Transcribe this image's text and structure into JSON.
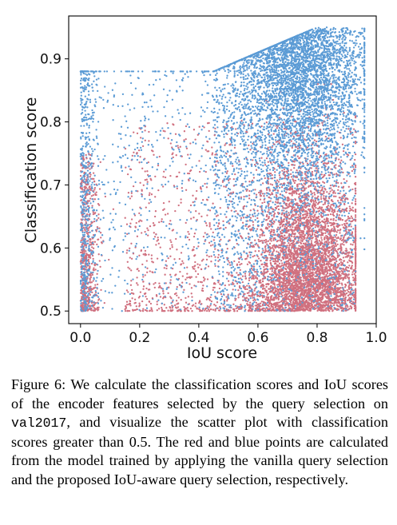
{
  "chart_data": {
    "type": "scatter",
    "title": "",
    "xlabel": "IoU score",
    "ylabel": "Classification score",
    "xlim": [
      -0.04,
      1.0
    ],
    "ylim": [
      0.48,
      0.968
    ],
    "xticks": [
      "0.0",
      "0.2",
      "0.4",
      "0.6",
      "0.8",
      "1.0"
    ],
    "xtick_values": [
      0.0,
      0.2,
      0.4,
      0.6,
      0.8,
      1.0
    ],
    "yticks": [
      "0.5",
      "0.6",
      "0.7",
      "0.8",
      "0.9"
    ],
    "ytick_values": [
      0.5,
      0.6,
      0.7,
      0.8,
      0.9
    ],
    "grid": false,
    "legend": "none",
    "series": [
      {
        "color": "#d0707f",
        "approx_points": 6000,
        "description_of_distribution": {
          "cluster_center": [
            0.77,
            0.56
          ],
          "cluster_spread": [
            0.09,
            0.09
          ],
          "x_range": [
            0.0,
            0.93
          ],
          "y_range": [
            0.5,
            0.86
          ]
        }
      },
      {
        "color": "#5b9bd5",
        "approx_points": 7000,
        "description_of_distribution": {
          "cluster_center": [
            0.74,
            0.86
          ],
          "cluster_spread": [
            0.11,
            0.08
          ],
          "x_range": [
            0.0,
            0.96
          ],
          "y_range": [
            0.5,
            0.96
          ]
        }
      }
    ]
  },
  "caption": {
    "label": "Figure 6:",
    "part1": " We calculate the classification scores and IoU scores of the encoder features selected by the query selection on ",
    "code": "val2017",
    "part2": ", and visualize the scatter plot with classification scores greater than ",
    "number": "0.5",
    "part3": ". The red and blue points are calculated from the model trained by applying the vanilla query selection and the proposed IoU-aware query selection, respectively."
  }
}
